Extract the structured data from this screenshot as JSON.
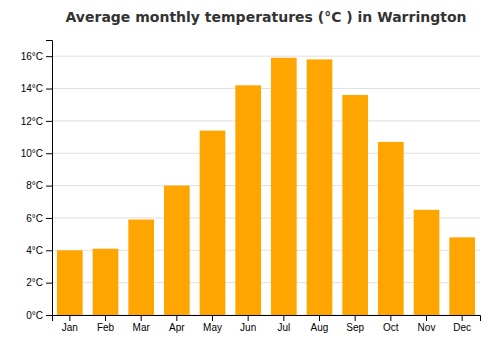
{
  "chart_data": {
    "type": "bar",
    "title": "Average monthly temperatures (°C ) in Warrington",
    "categories": [
      "Jan",
      "Feb",
      "Mar",
      "Apr",
      "May",
      "Jun",
      "Jul",
      "Aug",
      "Sep",
      "Oct",
      "Nov",
      "Dec"
    ],
    "values": [
      4.0,
      4.1,
      5.9,
      8.0,
      11.4,
      14.2,
      15.9,
      15.8,
      13.6,
      10.7,
      6.5,
      4.8
    ],
    "color": "#FFA500",
    "ylim": [
      0,
      17
    ],
    "yticks": [
      {
        "value": 0,
        "label": "0°C"
      },
      {
        "value": 2,
        "label": "2°C"
      },
      {
        "value": 4,
        "label": "4°C"
      },
      {
        "value": 6,
        "label": "6°C"
      },
      {
        "value": 8,
        "label": "8°C"
      },
      {
        "value": 10,
        "label": "10°C"
      },
      {
        "value": 12,
        "label": "12°C"
      },
      {
        "value": 14,
        "label": "14°C"
      },
      {
        "value": 16,
        "label": "16°C"
      }
    ],
    "grid": true
  }
}
